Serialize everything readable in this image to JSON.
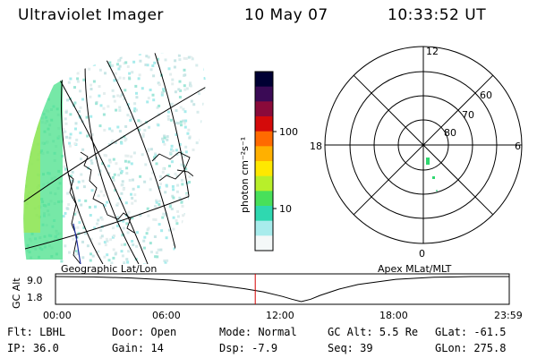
{
  "header": {
    "instrument": "Ultraviolet Imager",
    "date": "10 May 07",
    "time": "10:33:52 UT"
  },
  "colorbar": {
    "unit_label": "photon cm⁻²s⁻¹",
    "tick_labels": [
      "100",
      "10"
    ],
    "scale": "log",
    "colors": [
      "#000033",
      "#3a0a55",
      "#8a0a3a",
      "#d40a0a",
      "#ff6a00",
      "#ffb000",
      "#ffe800",
      "#b8ef2a",
      "#48e05a",
      "#2fd8b0",
      "#a8ecec",
      "#f4f8f8"
    ]
  },
  "left_map": {
    "caption": "Geographic Lat/Lon",
    "accent_color": "#2fd8a0"
  },
  "polar_plot": {
    "caption": "Apex MLat/MLT",
    "mlt_labels": [
      "12",
      "18",
      "6",
      "0"
    ],
    "lat_labels": [
      "60",
      "70",
      "80"
    ],
    "spot_color": "#2fd870"
  },
  "timeline": {
    "y_axis_label": "GC Alt",
    "y_ticks": [
      "9.0",
      "1.8"
    ],
    "x_ticks": [
      "00:00",
      "06:00",
      "12:00",
      "18:00",
      "23:59"
    ],
    "marker_color": "#d40000",
    "current_time_hours": 10.564,
    "curve_hours": [
      0,
      2,
      4,
      6,
      8,
      10,
      11,
      12,
      12.5,
      13,
      13.5,
      14,
      15,
      16,
      18,
      20,
      22,
      24
    ],
    "curve_alt": [
      9.0,
      8.9,
      8.6,
      8.0,
      7.0,
      5.5,
      4.6,
      3.3,
      2.5,
      1.8,
      2.5,
      3.6,
      5.4,
      6.7,
      8.2,
      8.8,
      9.0,
      9.0
    ]
  },
  "status": {
    "row1": [
      {
        "label": "Flt:",
        "value": "LBHL"
      },
      {
        "label": "Door:",
        "value": "Open"
      },
      {
        "label": "Mode:",
        "value": "Normal"
      },
      {
        "label": "GC Alt:",
        "value": "5.5 Re"
      },
      {
        "label": "GLat:",
        "value": "-61.5"
      }
    ],
    "row2": [
      {
        "label": "IP:",
        "value": "36.0"
      },
      {
        "label": "Gain:",
        "value": "14"
      },
      {
        "label": "Dsp:",
        "value": "-7.9"
      },
      {
        "label": "Seq:",
        "value": "39"
      },
      {
        "label": "GLon:",
        "value": "275.8"
      }
    ]
  }
}
